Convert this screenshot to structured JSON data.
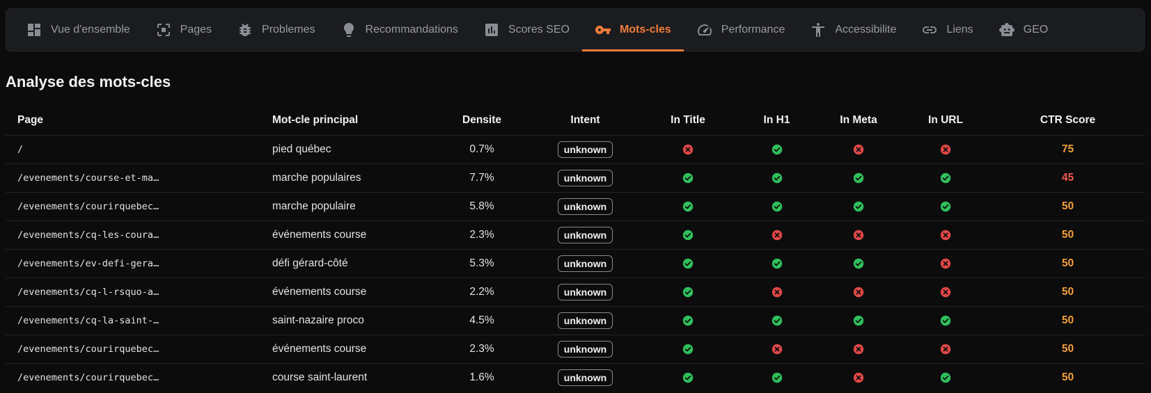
{
  "nav": {
    "tabs": [
      {
        "label": "Vue d'ensemble",
        "icon": "dashboard-icon",
        "active": false
      },
      {
        "label": "Pages",
        "icon": "pages-icon",
        "active": false
      },
      {
        "label": "Problemes",
        "icon": "bug-icon",
        "active": false
      },
      {
        "label": "Recommandations",
        "icon": "lightbulb-icon",
        "active": false
      },
      {
        "label": "Scores SEO",
        "icon": "bar-chart-icon",
        "active": false
      },
      {
        "label": "Mots-cles",
        "icon": "key-icon",
        "active": true
      },
      {
        "label": "Performance",
        "icon": "speedometer-icon",
        "active": false
      },
      {
        "label": "Accessibilite",
        "icon": "accessibility-icon",
        "active": false
      },
      {
        "label": "Liens",
        "icon": "link-icon",
        "active": false
      },
      {
        "label": "GEO",
        "icon": "robot-icon",
        "active": false
      }
    ],
    "accent_color": "#f07c3a"
  },
  "section": {
    "title": "Analyse des mots-cles"
  },
  "table": {
    "headers": {
      "page": "Page",
      "keyword": "Mot-cle principal",
      "density": "Densite",
      "intent": "Intent",
      "in_title": "In Title",
      "in_h1": "In H1",
      "in_meta": "In Meta",
      "in_url": "In URL",
      "ctr": "CTR Score"
    },
    "status_colors": {
      "yes": "#2fbf5b",
      "no": "#e04848",
      "score_orange": "#f59e3b",
      "score_red": "#ef5a4a"
    },
    "rows": [
      {
        "page": "/",
        "keyword": "pied québec",
        "density": "0.7%",
        "intent": "unknown",
        "in_title": false,
        "in_h1": true,
        "in_meta": false,
        "in_url": false,
        "ctr": "75",
        "ctr_level": "orange"
      },
      {
        "page": "/evenements/course-et-ma…",
        "keyword": "marche populaires",
        "density": "7.7%",
        "intent": "unknown",
        "in_title": true,
        "in_h1": true,
        "in_meta": true,
        "in_url": true,
        "ctr": "45",
        "ctr_level": "red"
      },
      {
        "page": "/evenements/courirquebec…",
        "keyword": "marche populaire",
        "density": "5.8%",
        "intent": "unknown",
        "in_title": true,
        "in_h1": true,
        "in_meta": true,
        "in_url": true,
        "ctr": "50",
        "ctr_level": "orange"
      },
      {
        "page": "/evenements/cq-les-coura…",
        "keyword": "événements course",
        "density": "2.3%",
        "intent": "unknown",
        "in_title": true,
        "in_h1": false,
        "in_meta": false,
        "in_url": false,
        "ctr": "50",
        "ctr_level": "orange"
      },
      {
        "page": "/evenements/ev-defi-gera…",
        "keyword": "défi gérard-côté",
        "density": "5.3%",
        "intent": "unknown",
        "in_title": true,
        "in_h1": true,
        "in_meta": true,
        "in_url": false,
        "ctr": "50",
        "ctr_level": "orange"
      },
      {
        "page": "/evenements/cq-l-rsquo-a…",
        "keyword": "événements course",
        "density": "2.2%",
        "intent": "unknown",
        "in_title": true,
        "in_h1": false,
        "in_meta": false,
        "in_url": false,
        "ctr": "50",
        "ctr_level": "orange"
      },
      {
        "page": "/evenements/cq-la-saint-…",
        "keyword": "saint-nazaire proco",
        "density": "4.5%",
        "intent": "unknown",
        "in_title": true,
        "in_h1": true,
        "in_meta": true,
        "in_url": true,
        "ctr": "50",
        "ctr_level": "orange"
      },
      {
        "page": "/evenements/courirquebec…",
        "keyword": "événements course",
        "density": "2.3%",
        "intent": "unknown",
        "in_title": true,
        "in_h1": false,
        "in_meta": false,
        "in_url": false,
        "ctr": "50",
        "ctr_level": "orange"
      },
      {
        "page": "/evenements/courirquebec…",
        "keyword": "course saint-laurent",
        "density": "1.6%",
        "intent": "unknown",
        "in_title": true,
        "in_h1": true,
        "in_meta": false,
        "in_url": true,
        "ctr": "50",
        "ctr_level": "orange"
      }
    ]
  }
}
